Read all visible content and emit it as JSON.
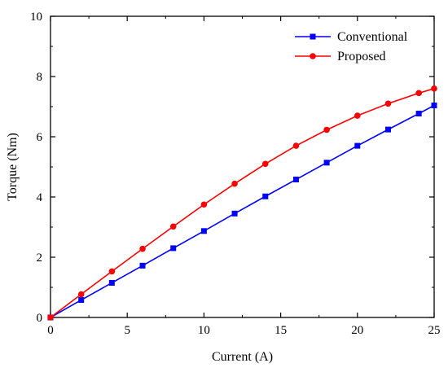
{
  "chart_data": {
    "type": "line",
    "xlabel": "Current (A)",
    "ylabel": "Torque (Nm)",
    "xlim": [
      0,
      25
    ],
    "ylim": [
      0,
      10
    ],
    "xticks": [
      0,
      5,
      10,
      15,
      20,
      25
    ],
    "yticks": [
      0,
      2,
      4,
      6,
      8,
      10
    ],
    "grid": false,
    "legend_position": "top-right",
    "series": [
      {
        "name": "Conventional",
        "color": "#0000ff",
        "marker": "square",
        "x": [
          0,
          2,
          4,
          6,
          8,
          10,
          12,
          14,
          16,
          18,
          20,
          22,
          24,
          25
        ],
        "y": [
          0,
          0.58,
          1.15,
          1.72,
          2.3,
          2.87,
          3.45,
          4.02,
          4.58,
          5.14,
          5.7,
          6.24,
          6.77,
          7.04
        ]
      },
      {
        "name": "Proposed",
        "color": "#ff0000",
        "marker": "circle",
        "x": [
          0,
          2,
          4,
          6,
          8,
          10,
          12,
          14,
          16,
          18,
          20,
          22,
          24,
          25
        ],
        "y": [
          0,
          0.77,
          1.53,
          2.28,
          3.02,
          3.75,
          4.44,
          5.1,
          5.7,
          6.23,
          6.7,
          7.1,
          7.45,
          7.6
        ]
      }
    ]
  }
}
